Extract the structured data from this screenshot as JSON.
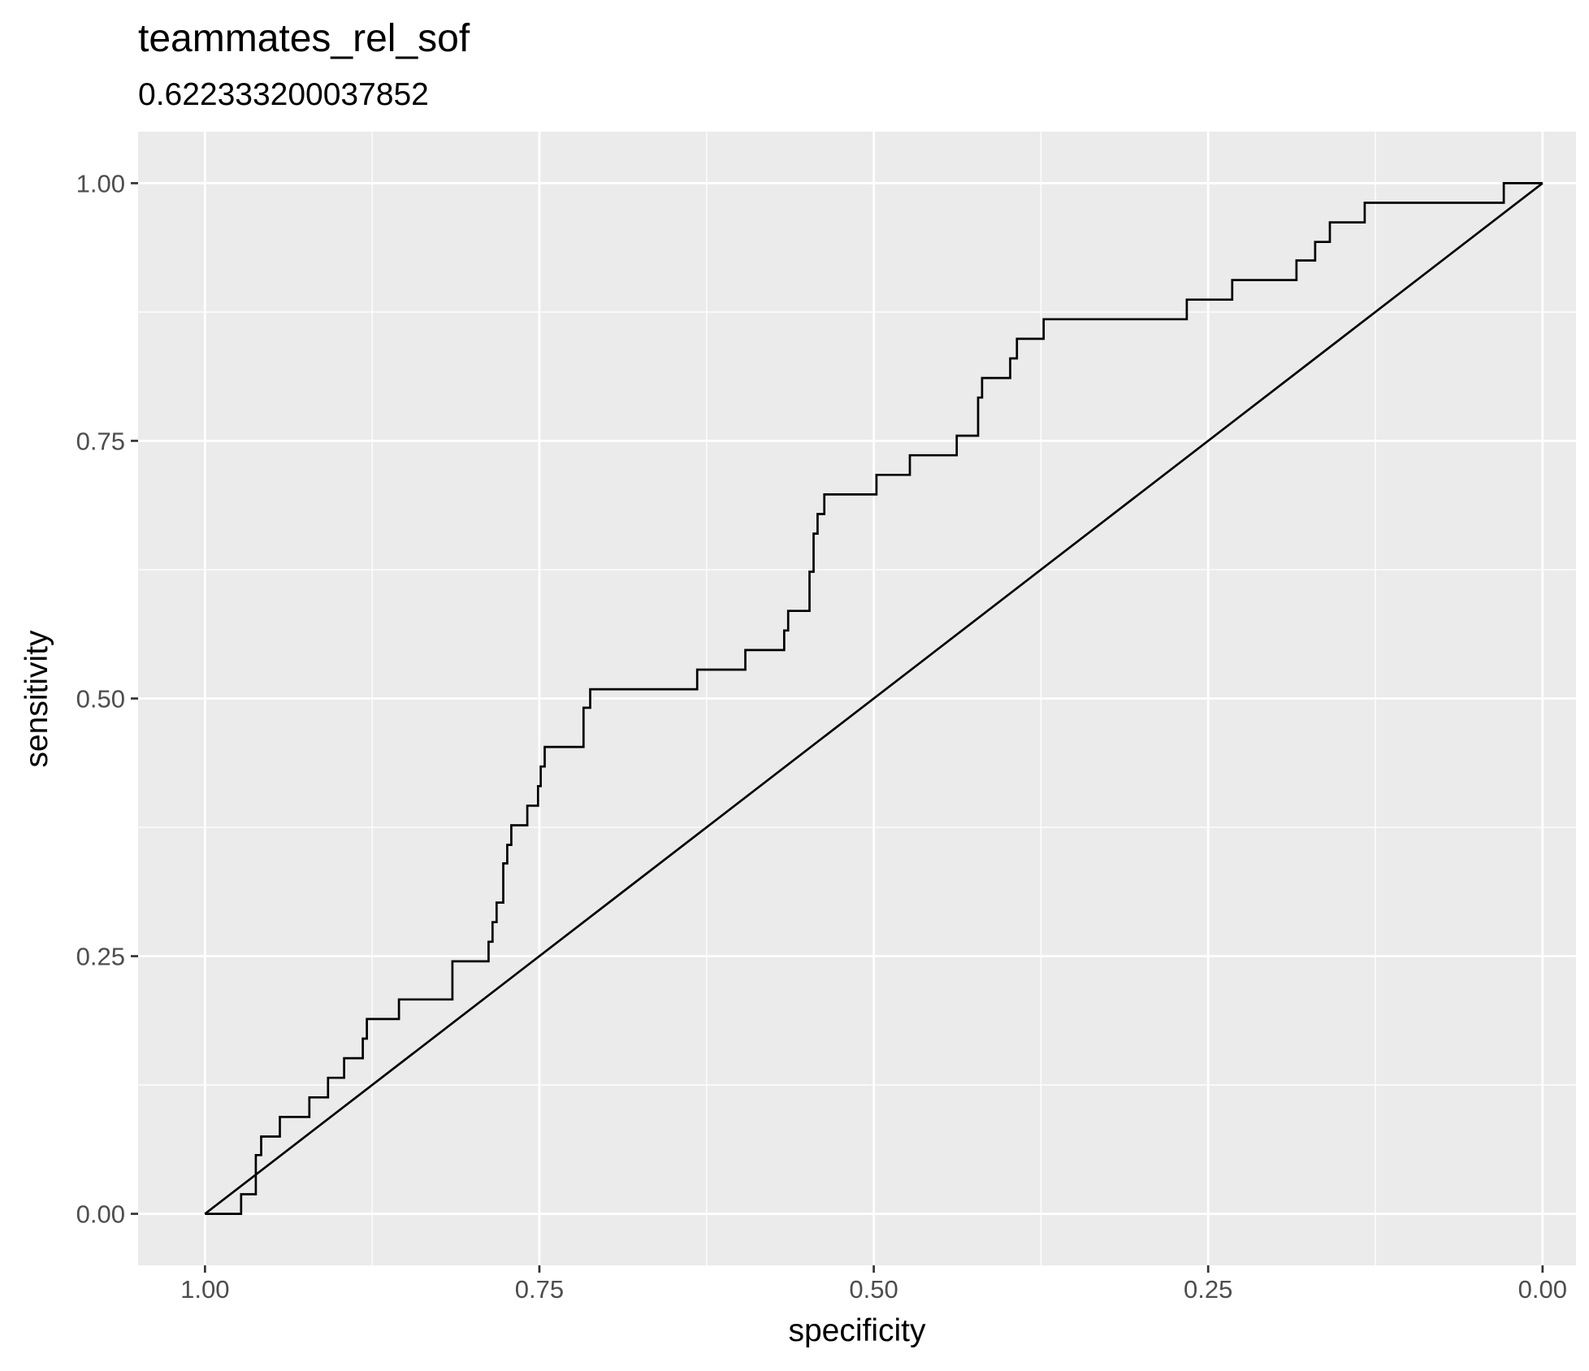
{
  "chart_data": {
    "type": "line",
    "title": "teammates_rel_sof",
    "subtitle": "0.622333200037852",
    "xlabel": "specificity",
    "ylabel": "sensitivity",
    "x_reversed": true,
    "xlim": [
      1.05,
      -0.025
    ],
    "ylim": [
      -0.05,
      1.05
    ],
    "x_ticks": [
      {
        "value": 1.0,
        "label": "1.00"
      },
      {
        "value": 0.75,
        "label": "0.75"
      },
      {
        "value": 0.5,
        "label": "0.50"
      },
      {
        "value": 0.25,
        "label": "0.25"
      },
      {
        "value": 0.0,
        "label": "0.00"
      }
    ],
    "y_ticks": [
      {
        "value": 0.0,
        "label": "0.00"
      },
      {
        "value": 0.25,
        "label": "0.25"
      },
      {
        "value": 0.5,
        "label": "0.50"
      },
      {
        "value": 0.75,
        "label": "0.75"
      },
      {
        "value": 1.0,
        "label": "1.00"
      }
    ],
    "grid": true,
    "background": "#ebebeb",
    "grid_color": "#ffffff",
    "line_color": "#000000",
    "series": [
      {
        "values": [
          [
            1.0,
            0.0
          ],
          [
            0.973,
            0.0
          ],
          [
            0.973,
            0.019
          ],
          [
            0.962,
            0.019
          ],
          [
            0.962,
            0.057
          ],
          [
            0.958,
            0.057
          ],
          [
            0.958,
            0.075
          ],
          [
            0.944,
            0.075
          ],
          [
            0.944,
            0.094
          ],
          [
            0.922,
            0.094
          ],
          [
            0.922,
            0.113
          ],
          [
            0.908,
            0.113
          ],
          [
            0.908,
            0.132
          ],
          [
            0.896,
            0.132
          ],
          [
            0.896,
            0.151
          ],
          [
            0.882,
            0.151
          ],
          [
            0.882,
            0.17
          ],
          [
            0.879,
            0.17
          ],
          [
            0.879,
            0.189
          ],
          [
            0.855,
            0.189
          ],
          [
            0.855,
            0.208
          ],
          [
            0.815,
            0.208
          ],
          [
            0.815,
            0.245
          ],
          [
            0.788,
            0.245
          ],
          [
            0.788,
            0.264
          ],
          [
            0.785,
            0.264
          ],
          [
            0.785,
            0.283
          ],
          [
            0.782,
            0.283
          ],
          [
            0.782,
            0.302
          ],
          [
            0.777,
            0.302
          ],
          [
            0.777,
            0.34
          ],
          [
            0.774,
            0.34
          ],
          [
            0.774,
            0.358
          ],
          [
            0.771,
            0.358
          ],
          [
            0.771,
            0.377
          ],
          [
            0.759,
            0.377
          ],
          [
            0.759,
            0.396
          ],
          [
            0.751,
            0.396
          ],
          [
            0.751,
            0.415
          ],
          [
            0.749,
            0.415
          ],
          [
            0.749,
            0.434
          ],
          [
            0.746,
            0.434
          ],
          [
            0.746,
            0.453
          ],
          [
            0.717,
            0.453
          ],
          [
            0.717,
            0.491
          ],
          [
            0.712,
            0.491
          ],
          [
            0.712,
            0.509
          ],
          [
            0.632,
            0.509
          ],
          [
            0.632,
            0.528
          ],
          [
            0.596,
            0.528
          ],
          [
            0.596,
            0.547
          ],
          [
            0.567,
            0.547
          ],
          [
            0.567,
            0.566
          ],
          [
            0.564,
            0.566
          ],
          [
            0.564,
            0.585
          ],
          [
            0.548,
            0.585
          ],
          [
            0.548,
            0.623
          ],
          [
            0.545,
            0.623
          ],
          [
            0.545,
            0.66
          ],
          [
            0.542,
            0.66
          ],
          [
            0.542,
            0.679
          ],
          [
            0.537,
            0.679
          ],
          [
            0.537,
            0.698
          ],
          [
            0.498,
            0.698
          ],
          [
            0.498,
            0.717
          ],
          [
            0.473,
            0.717
          ],
          [
            0.473,
            0.736
          ],
          [
            0.438,
            0.736
          ],
          [
            0.438,
            0.755
          ],
          [
            0.422,
            0.755
          ],
          [
            0.422,
            0.792
          ],
          [
            0.419,
            0.792
          ],
          [
            0.419,
            0.811
          ],
          [
            0.398,
            0.811
          ],
          [
            0.398,
            0.83
          ],
          [
            0.393,
            0.83
          ],
          [
            0.393,
            0.849
          ],
          [
            0.373,
            0.849
          ],
          [
            0.373,
            0.868
          ],
          [
            0.266,
            0.868
          ],
          [
            0.266,
            0.887
          ],
          [
            0.232,
            0.887
          ],
          [
            0.232,
            0.906
          ],
          [
            0.184,
            0.906
          ],
          [
            0.184,
            0.925
          ],
          [
            0.17,
            0.925
          ],
          [
            0.17,
            0.943
          ],
          [
            0.159,
            0.943
          ],
          [
            0.159,
            0.962
          ],
          [
            0.133,
            0.962
          ],
          [
            0.133,
            0.981
          ],
          [
            0.029,
            0.981
          ],
          [
            0.029,
            1.0
          ],
          [
            0.0,
            1.0
          ]
        ]
      },
      {
        "values": [
          [
            1.0,
            0.0
          ],
          [
            0.0,
            1.0
          ]
        ]
      }
    ]
  }
}
